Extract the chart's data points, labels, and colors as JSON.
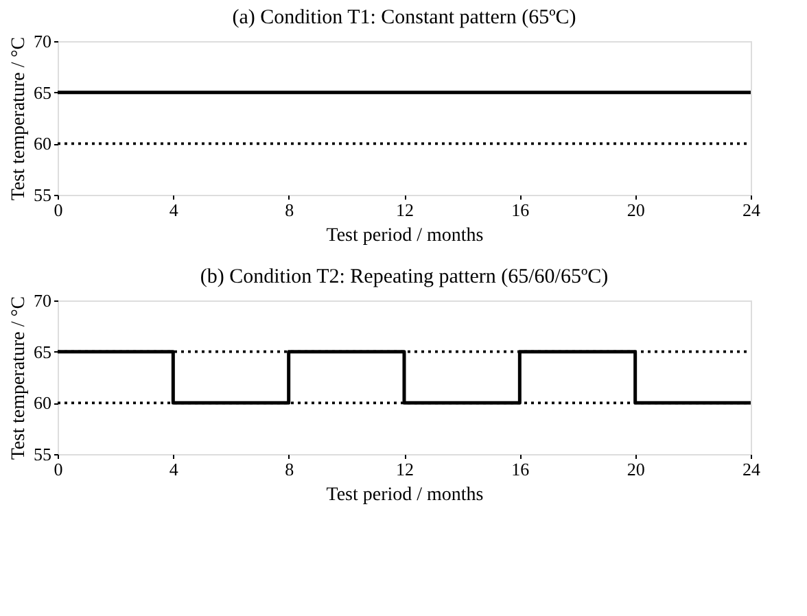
{
  "chart_data": [
    {
      "type": "line",
      "title": "(a) Condition T1: Constant pattern (65ºC)",
      "xlabel": "Test period / months",
      "ylabel": "Test temperature / °C",
      "series": [
        {
          "color": "#000000",
          "x": [
            0,
            24
          ],
          "values": [
            65,
            65
          ]
        }
      ],
      "xlim": [
        0,
        24
      ],
      "xticks": [
        0,
        4,
        8,
        12,
        16,
        20,
        24
      ],
      "ylim": [
        55,
        70
      ],
      "yticks": [
        55,
        60,
        65,
        70
      ],
      "grid": false,
      "line_style": "solid",
      "ref_lines": [
        {
          "axis": "y",
          "value": 60,
          "color": "#000000",
          "line_style": "dotted"
        }
      ]
    },
    {
      "type": "step",
      "title": "(b) Condition T2: Repeating pattern (65/60/65ºC)",
      "xlabel": "Test period / months",
      "ylabel": "Test temperature / °C",
      "series": [
        {
          "color": "#000000",
          "x": [
            0,
            4,
            8,
            12,
            16,
            20,
            24
          ],
          "values": [
            65,
            60,
            65,
            60,
            65,
            60,
            60
          ]
        }
      ],
      "xlim": [
        0,
        24
      ],
      "xticks": [
        0,
        4,
        8,
        12,
        16,
        20,
        24
      ],
      "ylim": [
        55,
        70
      ],
      "yticks": [
        55,
        60,
        65,
        70
      ],
      "grid": false,
      "line_style": "solid",
      "ref_lines": [
        {
          "axis": "y",
          "value": 60,
          "color": "#000000",
          "line_style": "dotted"
        },
        {
          "axis": "y",
          "value": 65,
          "color": "#000000",
          "line_style": "dotted"
        }
      ]
    }
  ]
}
